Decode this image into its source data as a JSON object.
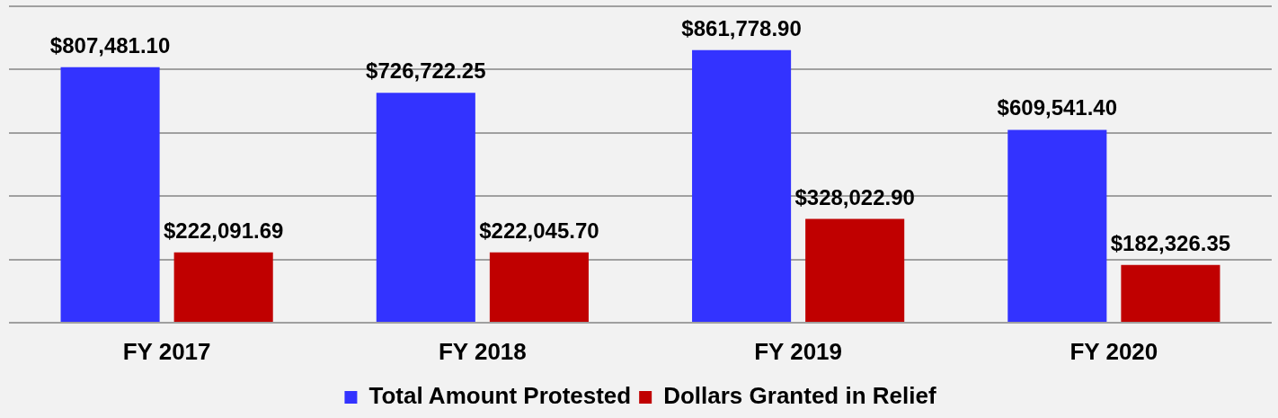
{
  "chart_data": {
    "type": "bar",
    "categories": [
      "FY 2017",
      "FY 2018",
      "FY 2019",
      "FY 2020"
    ],
    "series": [
      {
        "name": "Total Amount Protested",
        "color": "#3333ff",
        "values": [
          807481.1,
          726722.25,
          861778.9,
          609541.4
        ],
        "value_labels": [
          "$807,481.10",
          "$726,722.25",
          "$861,778.90",
          "$609,541.40"
        ]
      },
      {
        "name": "Dollars Granted in Relief",
        "color": "#c00000",
        "values": [
          222091.69,
          222045.7,
          328022.9,
          182326.35
        ],
        "value_labels": [
          "$222,091.69",
          "$222,045.70",
          "$328,022.90",
          "$182,326.35"
        ]
      }
    ],
    "ylim": [
      0,
      1000000
    ],
    "yticks": [
      {
        "value": 0,
        "label": null
      },
      {
        "value": 200000,
        "label": null
      },
      {
        "value": 400000,
        "label": null
      },
      {
        "value": 600000,
        "label": null
      },
      {
        "value": 800000,
        "label": null
      },
      {
        "value": 1000000,
        "label": null
      }
    ],
    "grid": "y",
    "legend": "bottom",
    "tick_labels": "x"
  }
}
